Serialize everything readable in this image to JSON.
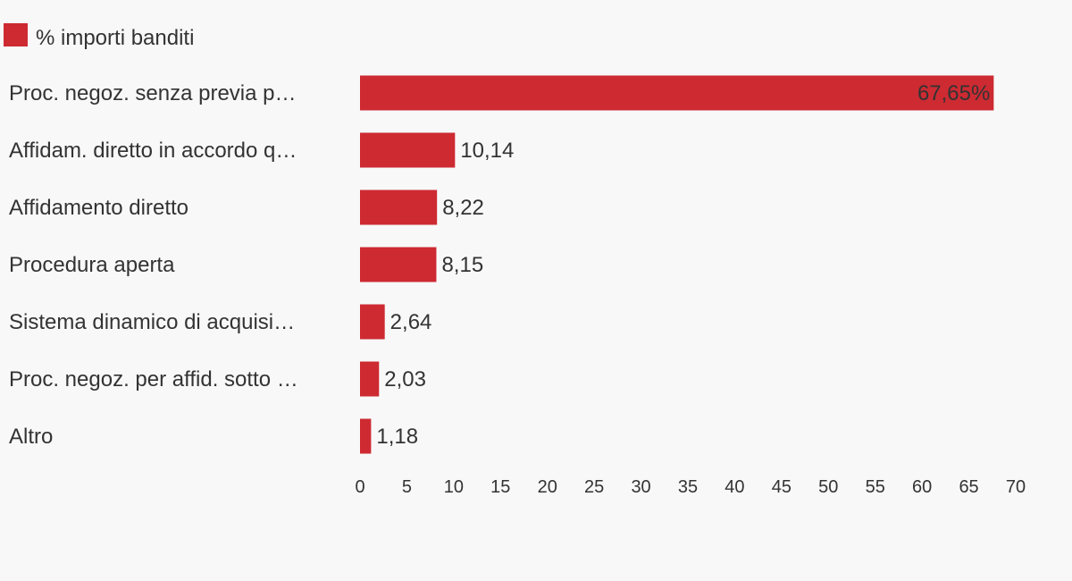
{
  "legend": {
    "label": "% importi banditi"
  },
  "chart_data": {
    "type": "bar",
    "orientation": "horizontal",
    "categories": [
      "Proc. negoz. senza previa p…",
      "Affidam. diretto in accordo q…",
      "Affidamento diretto",
      "Procedura aperta",
      "Sistema dinamico di acquisi…",
      "Proc. negoz. per affid. sotto …",
      "Altro"
    ],
    "series": [
      {
        "name": "% importi banditi",
        "values": [
          67.65,
          10.14,
          8.22,
          8.15,
          2.64,
          2.03,
          1.18
        ],
        "labels": [
          "67,65%",
          "10,14",
          "8,22",
          "8,15",
          "2,64",
          "2,03",
          "1,18"
        ],
        "color": "#cd2a32"
      }
    ],
    "xlim": [
      0,
      70
    ],
    "xticks": [
      "0",
      "5",
      "10",
      "15",
      "20",
      "25",
      "30",
      "35",
      "40",
      "45",
      "50",
      "55",
      "60",
      "65",
      "70"
    ],
    "title": "",
    "xlabel": "",
    "ylabel": "",
    "grid": false,
    "legend_position": "top-left"
  }
}
